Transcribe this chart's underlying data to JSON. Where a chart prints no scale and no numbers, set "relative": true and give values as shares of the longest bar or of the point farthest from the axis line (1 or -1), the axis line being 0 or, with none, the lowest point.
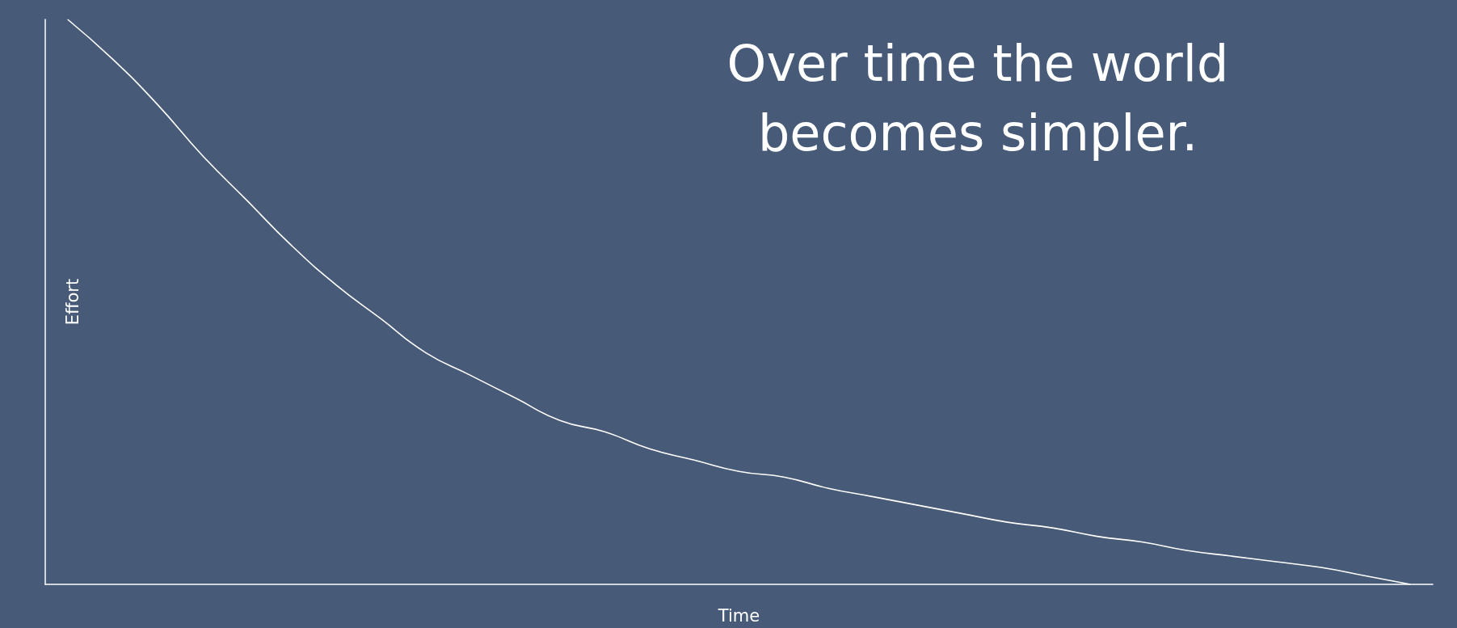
{
  "chart_data": {
    "type": "line",
    "title": "Over time the world\nbecomes simpler.",
    "xlabel": "Time",
    "ylabel": "Effort",
    "relative": true,
    "grid": false,
    "marker": "none",
    "line_style": "solid",
    "categories": [
      null,
      null,
      null,
      null,
      null,
      null,
      null,
      null,
      null,
      null,
      null,
      null,
      null,
      null,
      null,
      null,
      null,
      null,
      null,
      null,
      null,
      null,
      null,
      null,
      null,
      null,
      null,
      null,
      null,
      null,
      null
    ],
    "series": [
      {
        "color": "#ffffff",
        "values": [
          1.0,
          0.93,
          0.85,
          0.76,
          0.68,
          0.6,
          0.53,
          0.47,
          0.41,
          0.37,
          0.33,
          0.29,
          0.27,
          0.24,
          0.22,
          0.2,
          0.19,
          0.17,
          0.155,
          0.14,
          0.125,
          0.11,
          0.1,
          0.085,
          0.075,
          0.06,
          0.05,
          0.04,
          0.03,
          0.015,
          0.0
        ]
      }
    ]
  }
}
